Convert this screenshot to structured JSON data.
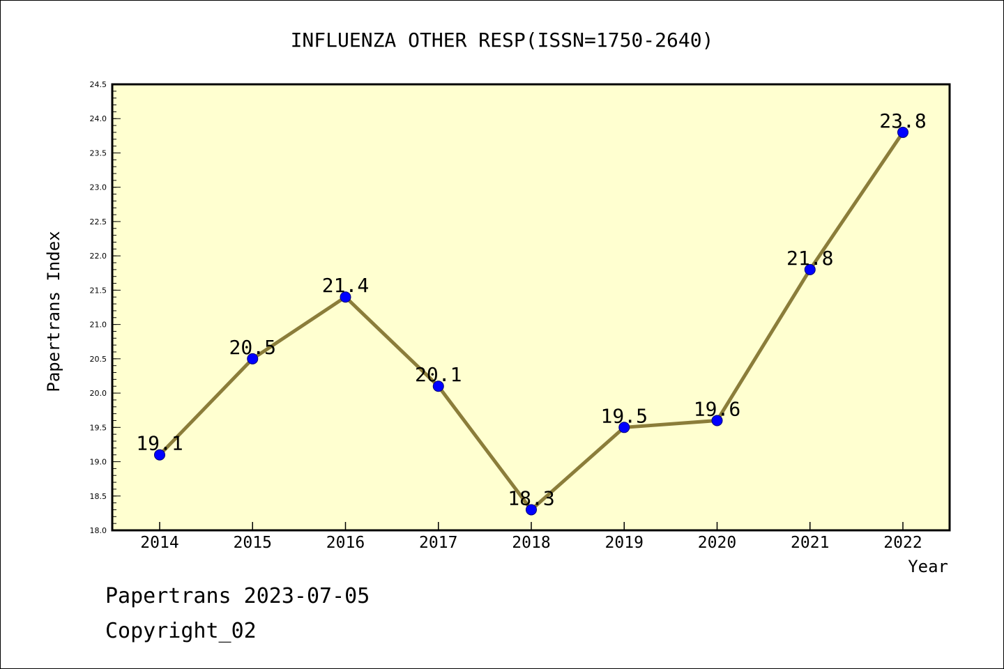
{
  "chart_data": {
    "type": "line",
    "title": "INFLUENZA OTHER RESP(ISSN=1750-2640)",
    "xlabel": "Year",
    "ylabel": "Papertrans Index",
    "categories": [
      "2014",
      "2015",
      "2016",
      "2017",
      "2018",
      "2019",
      "2020",
      "2021",
      "2022"
    ],
    "series": [
      {
        "values": [
          19.1,
          20.5,
          21.4,
          20.1,
          18.3,
          19.5,
          19.6,
          21.8,
          23.8
        ]
      }
    ],
    "data_labels": [
      "19.1",
      "20.5",
      "21.4",
      "20.1",
      "18.3",
      "19.5",
      "19.6",
      "21.8",
      "23.8"
    ],
    "ylim": [
      18.0,
      24.5
    ],
    "yticks": [
      "18.0",
      "18.5",
      "19.0",
      "19.5",
      "20.0",
      "20.5",
      "21.0",
      "21.5",
      "22.0",
      "22.5",
      "23.0",
      "23.5",
      "24.0",
      "24.5"
    ],
    "grid": false,
    "legend": "none",
    "colors": {
      "plot_background": "#ffffd0",
      "line": "#8b7d3a",
      "marker": "#0000ff"
    }
  },
  "footer": {
    "date_line": "Papertrans 2023-07-05",
    "copyright": "Copyright_02"
  }
}
